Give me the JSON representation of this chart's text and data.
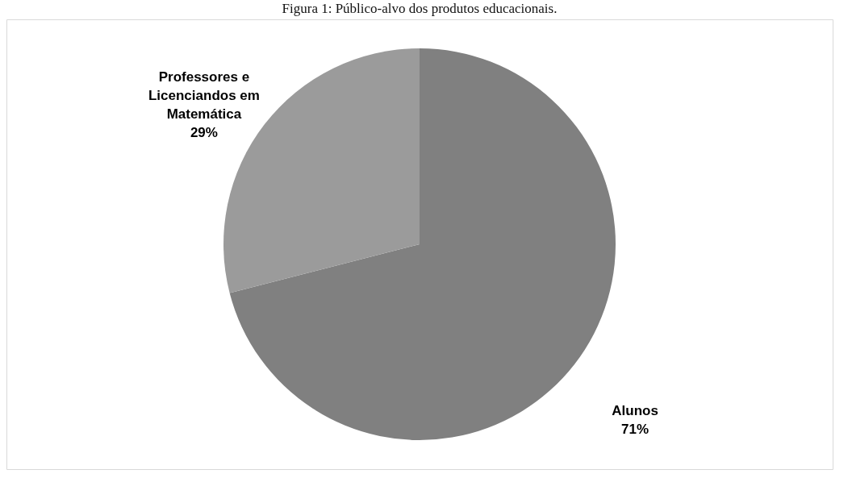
{
  "chart_data": {
    "type": "pie",
    "title": "Figura 1: Público-alvo dos produtos educacionais.",
    "categories": [
      "Alunos",
      "Professores e Licenciandos em Matemática"
    ],
    "values": [
      71,
      29
    ],
    "value_labels": [
      "71%",
      "29%"
    ],
    "colors": [
      "#808080",
      "#9b9b9b"
    ],
    "legend": false
  }
}
